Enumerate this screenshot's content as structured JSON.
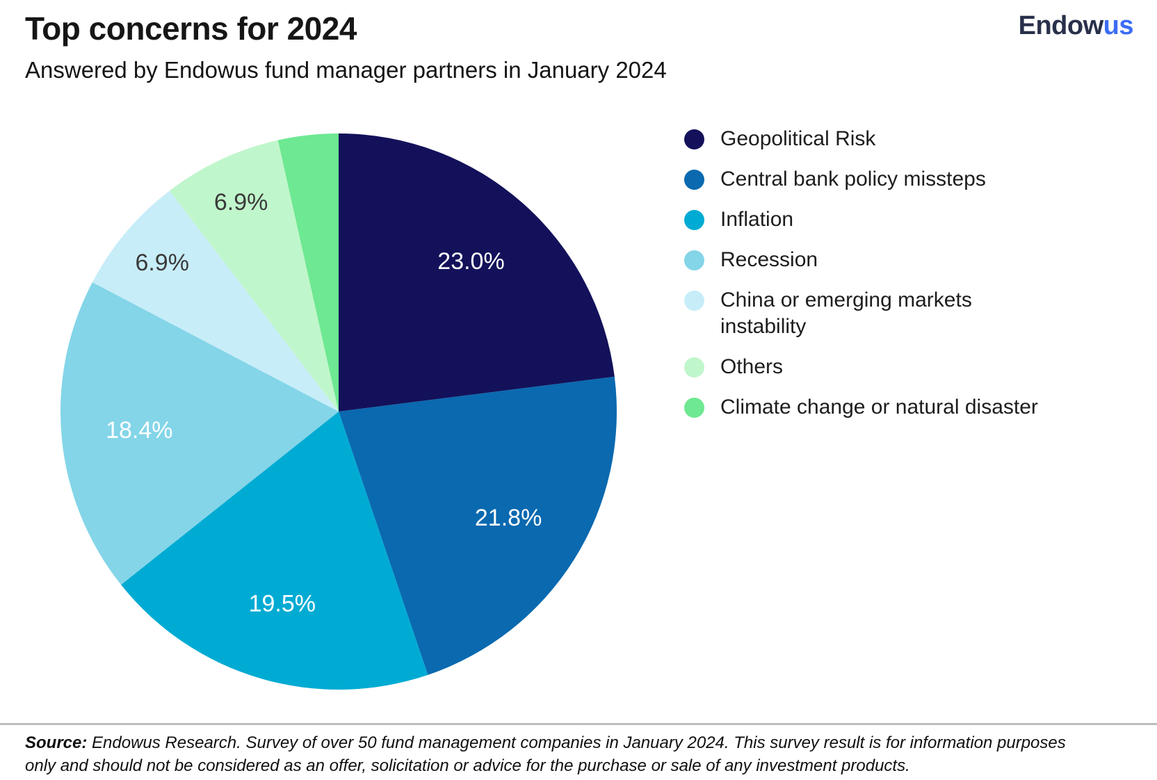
{
  "header": {
    "title": "Top concerns for 2024",
    "subtitle": "Answered by Endowus fund manager partners in January 2024",
    "logo": {
      "part1": "Endow",
      "part2": "us",
      "part1_color": "#28304a",
      "part2_color": "#3b6cf5"
    }
  },
  "chart_data": {
    "type": "pie",
    "title": "Top concerns for 2024",
    "subtitle": "Answered by Endowus fund manager partners in January 2024",
    "units": "percent",
    "start_angle_deg": 0,
    "direction": "clockwise",
    "legend_position": "right",
    "slices": [
      {
        "label": "Geopolitical Risk",
        "value": 23.0,
        "display_value": "23.0%",
        "color": "#13115a",
        "label_color": "#ffffff",
        "label_visible": true
      },
      {
        "label": "Central bank policy missteps",
        "value": 21.8,
        "display_value": "21.8%",
        "color": "#0a69af",
        "label_color": "#ffffff",
        "label_visible": true
      },
      {
        "label": "Inflation",
        "value": 19.5,
        "display_value": "19.5%",
        "color": "#00abd3",
        "label_color": "#ffffff",
        "label_visible": true
      },
      {
        "label": "Recession",
        "value": 18.4,
        "display_value": "18.4%",
        "color": "#84d5e8",
        "label_color": "#ffffff",
        "label_visible": true
      },
      {
        "label": "China or emerging markets instability",
        "value": 6.9,
        "display_value": "6.9%",
        "color": "#c7edf8",
        "label_color": "#3a3a3a",
        "label_visible": true
      },
      {
        "label": "Others",
        "value": 6.9,
        "display_value": "6.9%",
        "color": "#c0f6cb",
        "label_color": "#3a3a3a",
        "label_visible": true
      },
      {
        "label": "Climate change or natural disaster",
        "value": 3.5,
        "display_value": "",
        "color": "#6ee892",
        "label_color": null,
        "label_visible": false
      }
    ]
  },
  "footer": {
    "source_label": "Source:",
    "source_text": "Endowus Research. Survey of over 50 fund management companies in January 2024. This survey result is for information purposes only and should not be considered as an offer, solicitation or advice for the purchase or sale of any investment products.",
    "rule_color": "#bdbdbd"
  }
}
